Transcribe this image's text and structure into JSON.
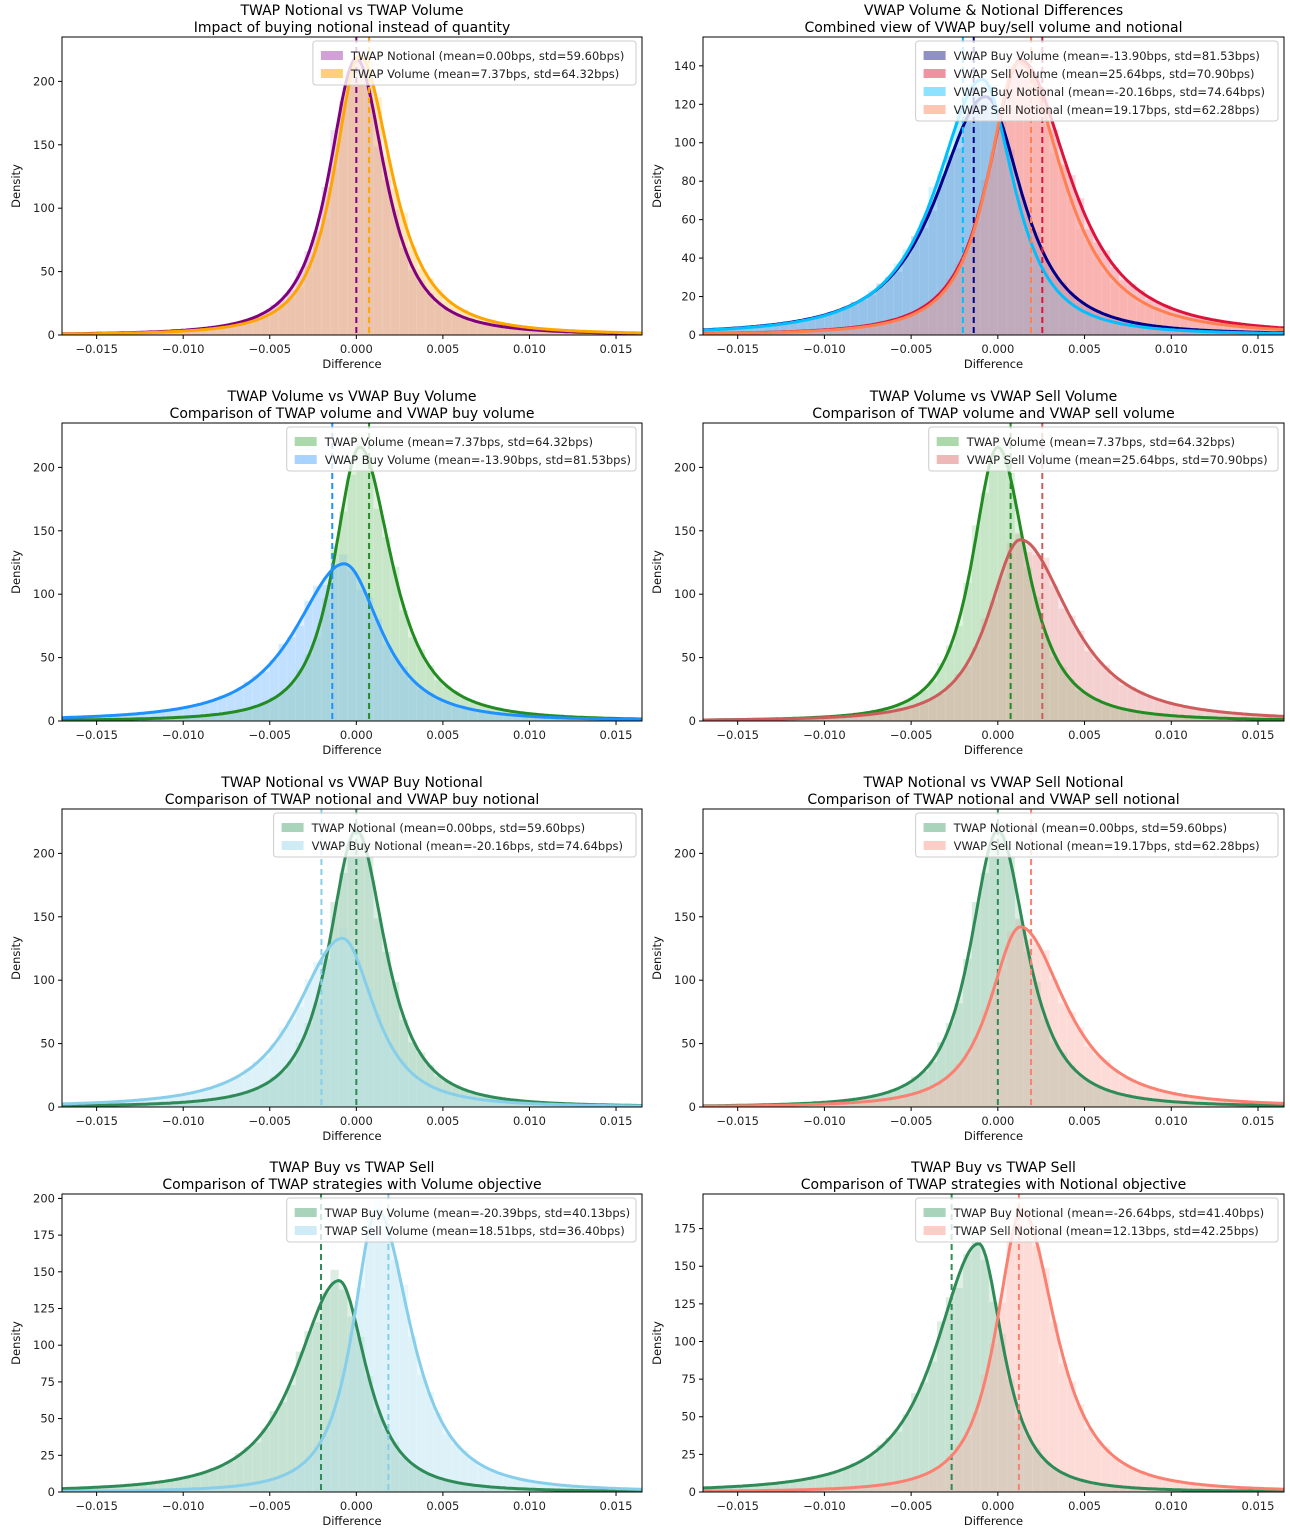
{
  "figure": {
    "layout": "4 rows x 2 columns"
  },
  "chart_data": [
    {
      "type": "area",
      "title": "TWAP Notional vs TWAP Volume",
      "subtitle": "Impact of buying notional instead of quantity",
      "xlabel": "Difference",
      "ylabel": "Density",
      "xlim": [
        -0.017,
        0.0165
      ],
      "ylim": [
        0,
        235
      ],
      "xticks": [
        "-0.015",
        "-0.010",
        "-0.005",
        "0.000",
        "0.005",
        "0.010",
        "0.015"
      ],
      "xtick_values": [
        -0.015,
        -0.01,
        -0.005,
        0,
        0.005,
        0.01,
        0.015
      ],
      "yticks": [
        0,
        50,
        100,
        150,
        200
      ],
      "legend_position": "top-right",
      "series": [
        {
          "name": "TWAP Notional (mean=0.00bps, std=59.60bps)",
          "mean": 0.0,
          "peak_x": 0.0,
          "peak": 218,
          "wl": 0.0018,
          "wr": 0.0019,
          "line": "#800080",
          "fill": "#c080c8",
          "fill_opacity": 0.45
        },
        {
          "name": "TWAP Volume (mean=7.37bps, std=64.32bps)",
          "mean": 0.000737,
          "peak_x": 0.0002,
          "peak": 220,
          "wl": 0.0017,
          "wr": 0.0021,
          "line": "#ffa500",
          "fill": "#ffc04d",
          "fill_opacity": 0.45
        }
      ]
    },
    {
      "type": "area",
      "title": "VWAP Volume & Notional Differences",
      "subtitle": "Combined view of VWAP buy/sell volume and notional",
      "xlabel": "Difference",
      "ylabel": "Density",
      "xlim": [
        -0.017,
        0.0165
      ],
      "ylim": [
        0,
        155
      ],
      "xticks": [
        "-0.015",
        "-0.010",
        "-0.005",
        "0.000",
        "0.005",
        "0.010",
        "0.015"
      ],
      "xtick_values": [
        -0.015,
        -0.01,
        -0.005,
        0,
        0.005,
        0.01,
        0.015
      ],
      "yticks": [
        0,
        20,
        40,
        60,
        80,
        100,
        120,
        140
      ],
      "legend_position": "top-right",
      "series": [
        {
          "name": "VWAP Buy Volume (mean=-13.90bps, std=81.53bps)",
          "mean": -0.00139,
          "peak_x": -0.0007,
          "peak": 124,
          "wl": 0.0032,
          "wr": 0.0024,
          "line": "#00008b",
          "fill": "#6a6ab8",
          "fill_opacity": 0.5
        },
        {
          "name": "VWAP Sell Volume (mean=25.64bps, std=70.90bps)",
          "mean": 0.002564,
          "peak_x": 0.0013,
          "peak": 143,
          "wl": 0.0021,
          "wr": 0.0032,
          "line": "#dc143c",
          "fill": "#ec6e82",
          "fill_opacity": 0.5
        },
        {
          "name": "VWAP Buy Notional (mean=-20.16bps, std=74.64bps)",
          "mean": -0.002016,
          "peak_x": -0.0009,
          "peak": 133,
          "wl": 0.003,
          "wr": 0.0021,
          "line": "#00bfff",
          "fill": "#66d8ff",
          "fill_opacity": 0.5
        },
        {
          "name": "VWAP Sell Notional (mean=19.17bps, std=62.28bps)",
          "mean": 0.001917,
          "peak_x": 0.0012,
          "peak": 142,
          "wl": 0.002,
          "wr": 0.0029,
          "line": "#ff7f50",
          "fill": "#ffb39a",
          "fill_opacity": 0.5
        }
      ]
    },
    {
      "type": "area",
      "title": "TWAP Volume vs VWAP Buy Volume",
      "subtitle": "Comparison of TWAP volume and VWAP buy volume",
      "xlabel": "Difference",
      "ylabel": "Density",
      "xlim": [
        -0.017,
        0.0165
      ],
      "ylim": [
        0,
        235
      ],
      "xticks": [
        "-0.015",
        "-0.010",
        "-0.005",
        "0.000",
        "0.005",
        "0.010",
        "0.015"
      ],
      "xtick_values": [
        -0.015,
        -0.01,
        -0.005,
        0,
        0.005,
        0.01,
        0.015
      ],
      "yticks": [
        0,
        50,
        100,
        150,
        200
      ],
      "legend_position": "top-right",
      "series": [
        {
          "name": "TWAP Volume (mean=7.37bps, std=64.32bps)",
          "mean": 0.000737,
          "peak_x": 0.0002,
          "peak": 216,
          "wl": 0.0017,
          "wr": 0.0021,
          "line": "#228b22",
          "fill": "#8fcc8f",
          "fill_opacity": 0.55
        },
        {
          "name": "VWAP Buy Volume (mean=-13.90bps, std=81.53bps)",
          "mean": -0.00139,
          "peak_x": -0.0007,
          "peak": 124,
          "wl": 0.0032,
          "wr": 0.0024,
          "line": "#1e90ff",
          "fill": "#8cc4ff",
          "fill_opacity": 0.6
        }
      ]
    },
    {
      "type": "area",
      "title": "TWAP Volume vs VWAP Sell Volume",
      "subtitle": "Comparison of TWAP volume and VWAP sell volume",
      "xlabel": "Difference",
      "ylabel": "Density",
      "xlim": [
        -0.017,
        0.0165
      ],
      "ylim": [
        0,
        235
      ],
      "xticks": [
        "-0.015",
        "-0.010",
        "-0.005",
        "0.000",
        "0.005",
        "0.010",
        "0.015"
      ],
      "xtick_values": [
        -0.015,
        -0.01,
        -0.005,
        0,
        0.005,
        0.01,
        0.015
      ],
      "yticks": [
        0,
        50,
        100,
        150,
        200
      ],
      "legend_position": "top-right",
      "series": [
        {
          "name": "TWAP Volume (mean=7.37bps, std=64.32bps)",
          "mean": 0.000737,
          "peak_x": 0.0,
          "peak": 216,
          "wl": 0.0017,
          "wr": 0.0019,
          "line": "#228b22",
          "fill": "#8fcc8f",
          "fill_opacity": 0.55
        },
        {
          "name": "VWAP Sell Volume (mean=25.64bps, std=70.90bps)",
          "mean": 0.002564,
          "peak_x": 0.0013,
          "peak": 143,
          "wl": 0.0021,
          "wr": 0.0032,
          "line": "#cd5c5c",
          "fill": "#e8a0a0",
          "fill_opacity": 0.55
        }
      ]
    },
    {
      "type": "area",
      "title": "TWAP Notional vs VWAP Buy Notional",
      "subtitle": "Comparison of TWAP notional and VWAP buy notional",
      "xlabel": "Difference",
      "ylabel": "Density",
      "xlim": [
        -0.017,
        0.0165
      ],
      "ylim": [
        0,
        235
      ],
      "xticks": [
        "-0.015",
        "-0.010",
        "-0.005",
        "0.000",
        "0.005",
        "0.010",
        "0.015"
      ],
      "xtick_values": [
        -0.015,
        -0.01,
        -0.005,
        0,
        0.005,
        0.01,
        0.015
      ],
      "yticks": [
        0,
        50,
        100,
        150,
        200
      ],
      "legend_position": "top-right",
      "series": [
        {
          "name": "TWAP Notional (mean=0.00bps, std=59.60bps)",
          "mean": 0.0,
          "peak_x": 0.0,
          "peak": 218,
          "wl": 0.0018,
          "wr": 0.0019,
          "line": "#2e8b57",
          "fill": "#8cc4a4",
          "fill_opacity": 0.6
        },
        {
          "name": "VWAP Buy Notional (mean=-20.16bps, std=74.64bps)",
          "mean": -0.002016,
          "peak_x": -0.0008,
          "peak": 133,
          "wl": 0.003,
          "wr": 0.0021,
          "line": "#87ceeb",
          "fill": "#bfe6f3",
          "fill_opacity": 0.6
        }
      ]
    },
    {
      "type": "area",
      "title": "TWAP Notional vs VWAP Sell Notional",
      "subtitle": "Comparison of TWAP notional and VWAP sell notional",
      "xlabel": "Difference",
      "ylabel": "Density",
      "xlim": [
        -0.017,
        0.0165
      ],
      "ylim": [
        0,
        235
      ],
      "xticks": [
        "-0.015",
        "-0.010",
        "-0.005",
        "0.000",
        "0.005",
        "0.010",
        "0.015"
      ],
      "xtick_values": [
        -0.015,
        -0.01,
        -0.005,
        0,
        0.005,
        0.01,
        0.015
      ],
      "yticks": [
        0,
        50,
        100,
        150,
        200
      ],
      "legend_position": "top-right",
      "series": [
        {
          "name": "TWAP Notional (mean=0.00bps, std=59.60bps)",
          "mean": 0.0,
          "peak_x": 0.0,
          "peak": 218,
          "wl": 0.0018,
          "wr": 0.0019,
          "line": "#2e8b57",
          "fill": "#8cc4a4",
          "fill_opacity": 0.6
        },
        {
          "name": "VWAP Sell Notional (mean=19.17bps, std=62.28bps)",
          "mean": 0.001917,
          "peak_x": 0.0013,
          "peak": 142,
          "wl": 0.002,
          "wr": 0.0029,
          "line": "#fa8072",
          "fill": "#fdbcb4",
          "fill_opacity": 0.6
        }
      ]
    },
    {
      "type": "area",
      "title": "TWAP Buy vs TWAP Sell",
      "subtitle": "Comparison of TWAP strategies with Volume objective",
      "xlabel": "Difference",
      "ylabel": "Density",
      "xlim": [
        -0.017,
        0.0165
      ],
      "ylim": [
        0,
        203
      ],
      "xticks": [
        "-0.015",
        "-0.010",
        "-0.005",
        "0.000",
        "0.005",
        "0.010",
        "0.015"
      ],
      "xtick_values": [
        -0.015,
        -0.01,
        -0.005,
        0,
        0.005,
        0.01,
        0.015
      ],
      "yticks": [
        0,
        25,
        50,
        75,
        100,
        125,
        150,
        175,
        200
      ],
      "legend_position": "top-right",
      "series": [
        {
          "name": "TWAP Buy Volume (mean=-20.39bps, std=40.13bps)",
          "mean": -0.002039,
          "peak_x": -0.001,
          "peak": 144,
          "wl": 0.0028,
          "wr": 0.0018,
          "line": "#2e8b57",
          "fill": "#8cc4a4",
          "fill_opacity": 0.55
        },
        {
          "name": "TWAP Sell Volume (mean=18.51bps, std=36.40bps)",
          "mean": 0.001851,
          "peak_x": 0.0012,
          "peak": 192,
          "wl": 0.0016,
          "wr": 0.0022,
          "line": "#87ceeb",
          "fill": "#bfe6f3",
          "fill_opacity": 0.6
        }
      ]
    },
    {
      "type": "area",
      "title": "TWAP Buy vs TWAP Sell",
      "subtitle": "Comparison of TWAP strategies with Notional objective",
      "xlabel": "Difference",
      "ylabel": "Density",
      "xlim": [
        -0.017,
        0.0165
      ],
      "ylim": [
        0,
        198
      ],
      "xticks": [
        "-0.015",
        "-0.010",
        "-0.005",
        "0.000",
        "0.005",
        "0.010",
        "0.015"
      ],
      "xtick_values": [
        -0.015,
        -0.01,
        -0.005,
        0,
        0.005,
        0.01,
        0.015
      ],
      "yticks": [
        0,
        25,
        50,
        75,
        100,
        125,
        150,
        175
      ],
      "legend_position": "top-right",
      "series": [
        {
          "name": "TWAP Buy Notional (mean=-26.64bps, std=41.40bps)",
          "mean": -0.002664,
          "peak_x": -0.0011,
          "peak": 165,
          "wl": 0.0028,
          "wr": 0.0016,
          "line": "#2e8b57",
          "fill": "#8cc4a4",
          "fill_opacity": 0.55
        },
        {
          "name": "TWAP Sell Notional (mean=12.13bps, std=42.25bps)",
          "mean": 0.001213,
          "peak_x": 0.0014,
          "peak": 187,
          "wl": 0.0017,
          "wr": 0.0022,
          "line": "#fa8072",
          "fill": "#fdbcb4",
          "fill_opacity": 0.6
        }
      ]
    }
  ]
}
